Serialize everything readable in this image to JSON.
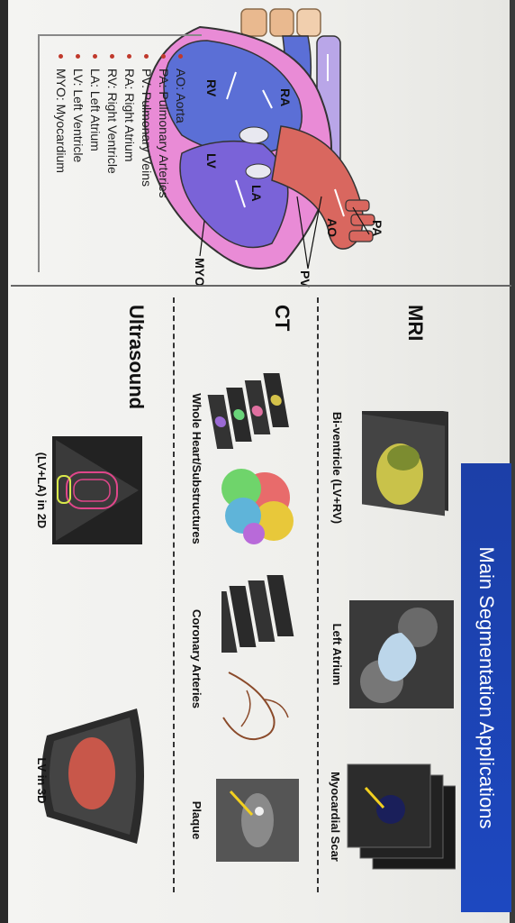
{
  "heart": {
    "labels": {
      "ra": "RA",
      "rv": "RV",
      "la": "LA",
      "lv": "LV",
      "ao": "AO",
      "pa": "PA",
      "pv": "PV",
      "myo": "MYO"
    }
  },
  "legend": [
    "AO: Aorta",
    "PA: Pulmonary Arteries",
    "PV: Pulmonary Veins",
    "RA: Right Atrium",
    "RV: Right Ventricle",
    "LA: Left Atrium",
    "LV: Left Ventricle",
    "MYO: Myocardium"
  ],
  "panel": {
    "title": "Main Segmentation Applications",
    "modalities": [
      {
        "name": "MRI",
        "applications": [
          "Bi-ventricle (LV+RV)",
          "Left Atrium",
          "Myocardial Scar"
        ]
      },
      {
        "name": "CT",
        "applications": [
          "Whole Heart/Substructures",
          "Coronary Arteries",
          "Plaque"
        ]
      },
      {
        "name": "Ultrasound",
        "applications": [
          "(LV+LA) in 2D",
          "LV in 3D"
        ]
      }
    ]
  },
  "colors": {
    "title_bar": "#1d45b8",
    "right_heart": "#5b6fd6",
    "left_heart": "#c07abf",
    "aorta": "#d9675f",
    "pulmonary_artery": "#b9a6e8",
    "pulmonary_veins": "#e9b98f",
    "myocardium": "#e98bd6"
  }
}
